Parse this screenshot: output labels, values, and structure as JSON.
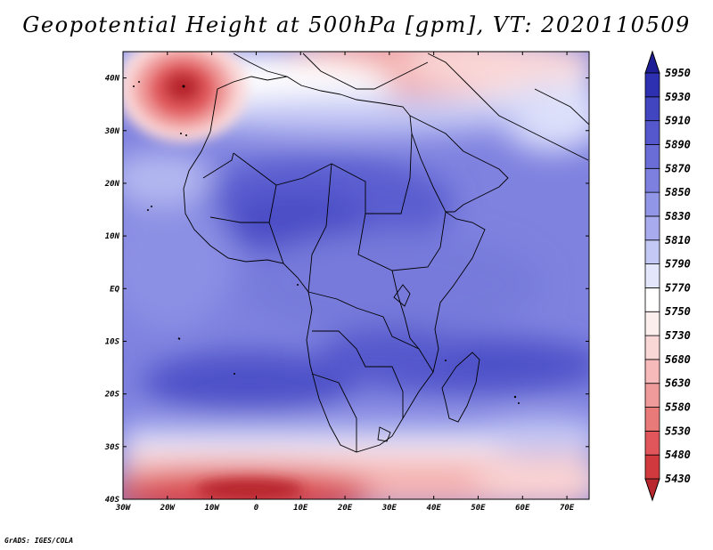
{
  "title": "Geopotential Height at 500hPa [gpm], VT: 2020110509",
  "credit": "GrADS: IGES/COLA",
  "map": {
    "lon_range": [
      -30,
      75
    ],
    "lat_range": [
      -40,
      45
    ],
    "lon_ticks": [
      "30W",
      "20W",
      "10W",
      "0",
      "10E",
      "20E",
      "30E",
      "40E",
      "50E",
      "60E",
      "70E"
    ],
    "lat_ticks": [
      "40S",
      "30S",
      "20S",
      "10S",
      "EQ",
      "10N",
      "20N",
      "30N",
      "40N"
    ]
  },
  "colorbar": {
    "levels": [
      "5430",
      "5480",
      "5530",
      "5580",
      "5630",
      "5680",
      "5730",
      "5750",
      "5770",
      "5790",
      "5810",
      "5830",
      "5850",
      "5870",
      "5890",
      "5910",
      "5930",
      "5950"
    ],
    "colors": [
      "#b8282e",
      "#d03a3e",
      "#e0565a",
      "#e87a7a",
      "#f09b9b",
      "#f6baba",
      "#fad7d7",
      "#fdeeee",
      "#ffffff",
      "#e4e6fb",
      "#c4c8f4",
      "#a8acee",
      "#9296e6",
      "#7d80de",
      "#6a6dd6",
      "#5558cc",
      "#4245c0",
      "#2d30b0",
      "#1e1e96"
    ]
  },
  "colors": {
    "land": "none",
    "coast": "#000000"
  }
}
